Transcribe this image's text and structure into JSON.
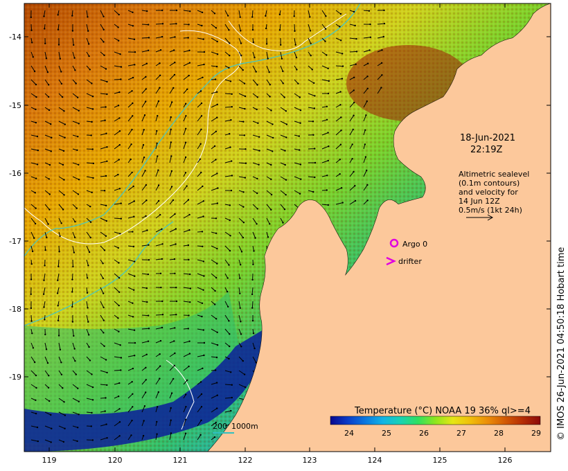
{
  "map": {
    "lon_range": [
      118.6,
      126.7
    ],
    "lat_range": [
      -20.1,
      -13.55
    ],
    "lon_ticks": [
      "119",
      "120",
      "121",
      "122",
      "123",
      "124",
      "125",
      "126"
    ],
    "lat_ticks": [
      "-14",
      "-15",
      "-16",
      "-17",
      "-18",
      "-19"
    ],
    "ocean_gradient": [
      "#b34a00",
      "#d9780a",
      "#e6a800",
      "#cfd21b",
      "#79d22a",
      "#2fbf6b",
      "#1aa9d6",
      "#1f4fc4",
      "#0a1f9a"
    ],
    "land_color": "#fcc89b"
  },
  "date_label": {
    "date": "18-Jun-2021",
    "time": "22:19Z"
  },
  "sealevel_note": {
    "line1": "Altimetric sealevel",
    "line2": "(0.1m contours)",
    "line3": "and velocity for",
    "line4": "14 Jun 12Z",
    "line5": "0.5m/s (1kt 24h)"
  },
  "legend": {
    "argo": "Argo 0",
    "argo_color": "#e000e0",
    "drifter": "drifter",
    "drifter_color": "#e000e0"
  },
  "bathy_scale": {
    "left": "200",
    "right": "1000m",
    "color": "#30c0c0"
  },
  "colorbar": {
    "title": "Temperature (°C) NOAA 19 36% ql>=4",
    "ticks": [
      "24",
      "25",
      "26",
      "27",
      "28",
      "29"
    ],
    "colors": [
      "#08088e",
      "#0a3cc8",
      "#0a78e0",
      "#12b4e6",
      "#18d2b4",
      "#30e060",
      "#8ee61e",
      "#e6e614",
      "#f0be0a",
      "#eb8c08",
      "#d25a05",
      "#b42d05",
      "#8c0a0a"
    ]
  },
  "copyright": "© IMOS 26-Jun-2021 04:50:18 Hobart time"
}
